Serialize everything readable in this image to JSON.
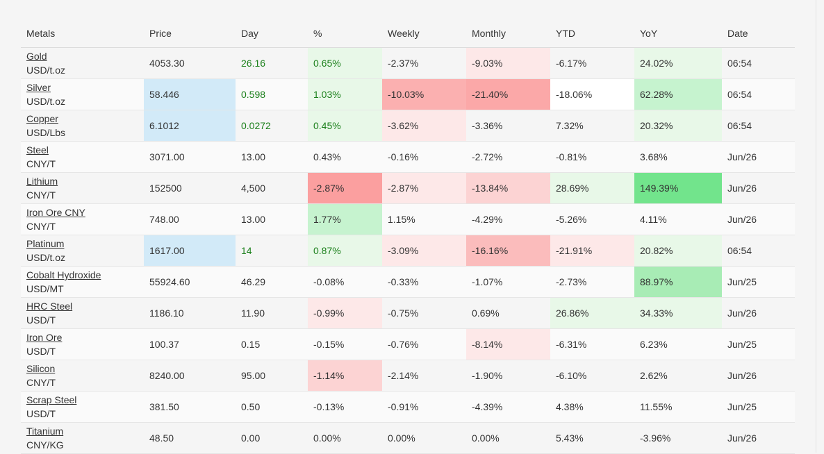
{
  "headers": {
    "metals": "Metals",
    "price": "Price",
    "day": "Day",
    "pct": "%",
    "weekly": "Weekly",
    "monthly": "Monthly",
    "ytd": "YTD",
    "yoy": "YoY",
    "date": "Date"
  },
  "colors": {
    "positive_text": "#1a7f1a",
    "price_highlight": "#d2eaf8",
    "green_1": "#e8f8e8",
    "green_2": "#c6f3cf",
    "green_3": "#a8ecb5",
    "green_4": "#72e48c",
    "red_1": "#fde8e8",
    "red_2": "#fcd3d3",
    "red_3": "#fbb5b5",
    "red_4": "#fba0a0"
  },
  "rows": [
    {
      "name": "Gold",
      "unit": "USD/t.oz",
      "price": "4053.30",
      "day": "26.16",
      "pct": "0.65%",
      "weekly": "-2.37%",
      "monthly": "-9.03%",
      "ytd": "-6.17%",
      "yoy": "24.02%",
      "date": "06:54",
      "style": {
        "price": "",
        "day_pos": true,
        "pct": "#e8f8e8",
        "pct_pos": true,
        "weekly": "",
        "monthly": "#fde8e8",
        "ytd": "",
        "yoy": "#e8f8e8"
      }
    },
    {
      "name": "Silver",
      "unit": "USD/t.oz",
      "price": "58.446",
      "day": "0.598",
      "pct": "1.03%",
      "weekly": "-10.03%",
      "monthly": "-21.40%",
      "ytd": "-18.06%",
      "yoy": "62.28%",
      "date": "06:54",
      "style": {
        "price": "#d2eaf8",
        "day_pos": true,
        "pct": "#e8f8e8",
        "pct_pos": true,
        "weekly": "#fbb0b0",
        "monthly": "#fba8a8",
        "ytd": "#ffffff",
        "yoy": "#c6f3cf"
      }
    },
    {
      "name": "Copper",
      "unit": "USD/Lbs",
      "price": "6.1012",
      "day": "0.0272",
      "pct": "0.45%",
      "weekly": "-3.62%",
      "monthly": "-3.36%",
      "ytd": "7.32%",
      "yoy": "20.32%",
      "date": "06:54",
      "style": {
        "price": "#d2eaf8",
        "day_pos": true,
        "pct": "#e8f8e8",
        "pct_pos": true,
        "weekly": "#fde8e8",
        "monthly": "",
        "ytd": "",
        "yoy": "#e8f8e8"
      }
    },
    {
      "name": "Steel",
      "unit": "CNY/T",
      "price": "3071.00",
      "day": "13.00",
      "pct": "0.43%",
      "weekly": "-0.16%",
      "monthly": "-2.72%",
      "ytd": "-0.81%",
      "yoy": "3.68%",
      "date": "Jun/26",
      "style": {
        "price": "",
        "day_pos": false,
        "pct": "",
        "pct_pos": false,
        "weekly": "",
        "monthly": "",
        "ytd": "",
        "yoy": ""
      }
    },
    {
      "name": "Lithium",
      "unit": "CNY/T",
      "price": "152500",
      "day": "4,500",
      "pct": "-2.87%",
      "weekly": "-2.87%",
      "monthly": "-13.84%",
      "ytd": "28.69%",
      "yoy": "149.39%",
      "date": "Jun/26",
      "style": {
        "price": "",
        "day_pos": false,
        "pct": "#fb9f9f",
        "pct_pos": false,
        "weekly": "#fde8e8",
        "monthly": "#fcd3d3",
        "ytd": "#e8f8e8",
        "yoy": "#72e48c"
      }
    },
    {
      "name": "Iron Ore CNY",
      "unit": "CNY/T",
      "price": "748.00",
      "day": "13.00",
      "pct": "1.77%",
      "weekly": "1.15%",
      "monthly": "-4.29%",
      "ytd": "-5.26%",
      "yoy": "4.11%",
      "date": "Jun/26",
      "style": {
        "price": "",
        "day_pos": false,
        "pct": "#c6f3cf",
        "pct_pos": false,
        "weekly": "",
        "monthly": "",
        "ytd": "",
        "yoy": ""
      }
    },
    {
      "name": "Platinum",
      "unit": "USD/t.oz",
      "price": "1617.00",
      "day": "14",
      "pct": "0.87%",
      "weekly": "-3.09%",
      "monthly": "-16.16%",
      "ytd": "-21.91%",
      "yoy": "20.82%",
      "date": "06:54",
      "style": {
        "price": "#d2eaf8",
        "day_pos": true,
        "pct": "#e8f8e8",
        "pct_pos": true,
        "weekly": "#fde8e8",
        "monthly": "#fbbcbc",
        "ytd": "#fde8e8",
        "yoy": "#e8f8e8"
      }
    },
    {
      "name": "Cobalt Hydroxide",
      "unit": "USD/MT",
      "price": "55924.60",
      "day": "46.29",
      "pct": "-0.08%",
      "weekly": "-0.33%",
      "monthly": "-1.07%",
      "ytd": "-2.73%",
      "yoy": "88.97%",
      "date": "Jun/25",
      "style": {
        "price": "",
        "day_pos": false,
        "pct": "",
        "pct_pos": false,
        "weekly": "",
        "monthly": "",
        "ytd": "",
        "yoy": "#a8ecb5"
      }
    },
    {
      "name": "HRC Steel",
      "unit": "USD/T",
      "price": "1186.10",
      "day": "11.90",
      "pct": "-0.99%",
      "weekly": "-0.75%",
      "monthly": "0.69%",
      "ytd": "26.86%",
      "yoy": "34.33%",
      "date": "Jun/26",
      "style": {
        "price": "",
        "day_pos": false,
        "pct": "#fde8e8",
        "pct_pos": false,
        "weekly": "",
        "monthly": "",
        "ytd": "#e8f8e8",
        "yoy": "#e8f8e8"
      }
    },
    {
      "name": "Iron Ore",
      "unit": "USD/T",
      "price": "100.37",
      "day": "0.15",
      "pct": "-0.15%",
      "weekly": "-0.76%",
      "monthly": "-8.14%",
      "ytd": "-6.31%",
      "yoy": "6.23%",
      "date": "Jun/25",
      "style": {
        "price": "",
        "day_pos": false,
        "pct": "",
        "pct_pos": false,
        "weekly": "",
        "monthly": "#fde8e8",
        "ytd": "",
        "yoy": ""
      }
    },
    {
      "name": "Silicon",
      "unit": "CNY/T",
      "price": "8240.00",
      "day": "95.00",
      "pct": "-1.14%",
      "weekly": "-2.14%",
      "monthly": "-1.90%",
      "ytd": "-6.10%",
      "yoy": "2.62%",
      "date": "Jun/26",
      "style": {
        "price": "",
        "day_pos": false,
        "pct": "#fcd3d3",
        "pct_pos": false,
        "weekly": "",
        "monthly": "",
        "ytd": "",
        "yoy": ""
      }
    },
    {
      "name": "Scrap Steel",
      "unit": "USD/T",
      "price": "381.50",
      "day": "0.50",
      "pct": "-0.13%",
      "weekly": "-0.91%",
      "monthly": "-4.39%",
      "ytd": "4.38%",
      "yoy": "11.55%",
      "date": "Jun/25",
      "style": {
        "price": "",
        "day_pos": false,
        "pct": "",
        "pct_pos": false,
        "weekly": "",
        "monthly": "",
        "ytd": "",
        "yoy": ""
      }
    },
    {
      "name": "Titanium",
      "unit": "CNY/KG",
      "price": "48.50",
      "day": "0.00",
      "pct": "0.00%",
      "weekly": "0.00%",
      "monthly": "0.00%",
      "ytd": "5.43%",
      "yoy": "-3.96%",
      "date": "Jun/26",
      "style": {
        "price": "",
        "day_pos": false,
        "pct": "",
        "pct_pos": false,
        "weekly": "",
        "monthly": "",
        "ytd": "",
        "yoy": ""
      }
    }
  ]
}
